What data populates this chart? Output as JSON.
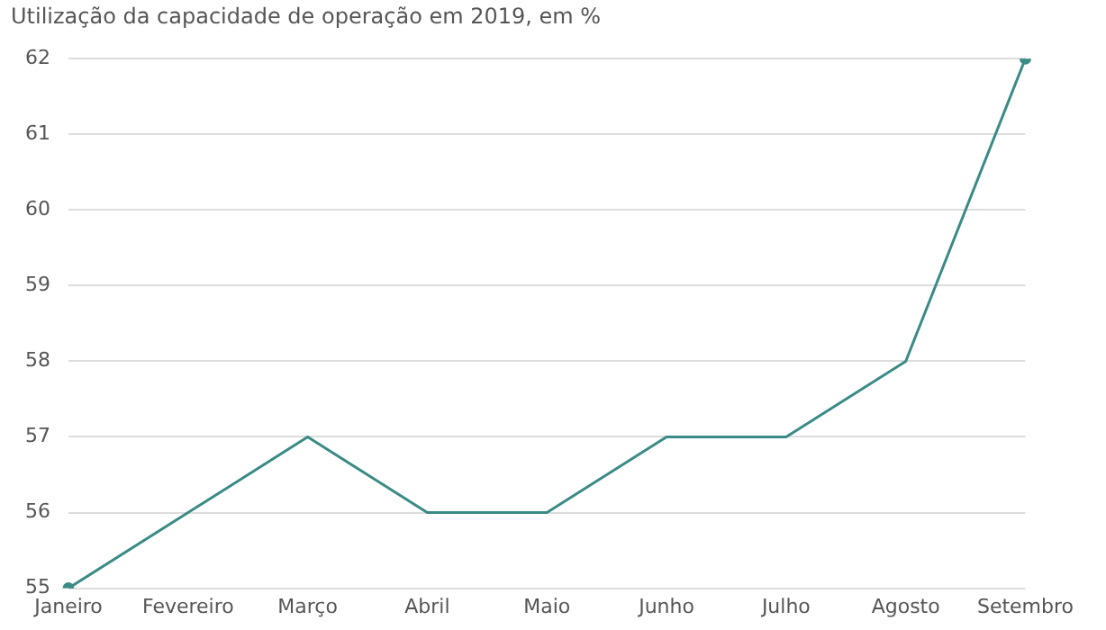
{
  "chart_data": {
    "type": "line",
    "title": "Utilização da capacidade de operação em 2019, em %",
    "categories": [
      "Janeiro",
      "Fevereiro",
      "Março",
      "Abril",
      "Maio",
      "Junho",
      "Julho",
      "Agosto",
      "Setembro"
    ],
    "series": [
      {
        "color": "#3a8a85",
        "values": [
          55,
          56,
          57,
          56,
          56,
          57,
          57,
          58,
          62
        ]
      }
    ],
    "ylim": [
      55,
      62
    ],
    "yticks": [
      55,
      56,
      57,
      58,
      59,
      60,
      61,
      62
    ],
    "grid": "y",
    "legend": false,
    "line_style": "solid"
  }
}
